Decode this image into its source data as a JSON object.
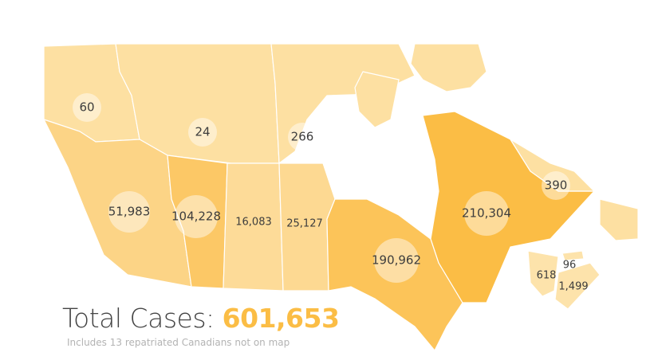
{
  "colors": {
    "lightest": "#fde3a8",
    "light": "#fcdb97",
    "medium": "#fcd180",
    "strong": "#fcc561",
    "strongest": "#fbbd45"
  },
  "provinces": [
    {
      "id": "yukon",
      "value": "60",
      "color": "#fde0a2"
    },
    {
      "id": "northwest-territories",
      "value": "24",
      "color": "#fde0a2"
    },
    {
      "id": "nunavut",
      "value": "266",
      "color": "#fde0a2"
    },
    {
      "id": "british-columbia",
      "value": "51,983",
      "color": "#fcd486"
    },
    {
      "id": "alberta",
      "value": "104,228",
      "color": "#fcc866"
    },
    {
      "id": "saskatchewan",
      "value": "16,083",
      "color": "#fddb98"
    },
    {
      "id": "manitoba",
      "value": "25,127",
      "color": "#fdd992"
    },
    {
      "id": "ontario",
      "value": "190,962",
      "color": "#fcc459"
    },
    {
      "id": "quebec",
      "value": "210,304",
      "color": "#fbbd45"
    },
    {
      "id": "newfoundland-and-labrador",
      "value": "390",
      "color": "#fde0a2"
    },
    {
      "id": "new-brunswick",
      "value": "618",
      "color": "#fde3ab"
    },
    {
      "id": "prince-edward-island",
      "value": "96",
      "color": "#fde3ab"
    },
    {
      "id": "nova-scotia",
      "value": "1,499",
      "color": "#fde3ab"
    }
  ],
  "total": {
    "label": "Total Cases:",
    "value": "601,653"
  },
  "note": "Includes 13 repatriated Canadians not on map"
}
